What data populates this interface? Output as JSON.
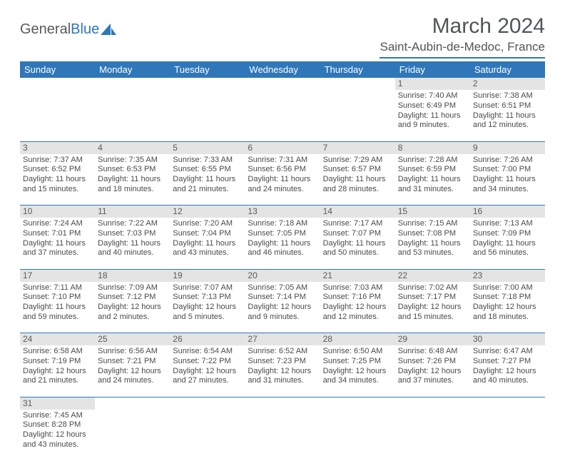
{
  "logo": {
    "text1": "General",
    "text2": "Blue"
  },
  "title": "March 2024",
  "location": "Saint-Aubin-de-Medoc, France",
  "headerColor": "#2f77b9",
  "dayHeaderBg": "#e4e4e4",
  "weekdays": [
    "Sunday",
    "Monday",
    "Tuesday",
    "Wednesday",
    "Thursday",
    "Friday",
    "Saturday"
  ],
  "weeks": [
    {
      "nums": [
        "",
        "",
        "",
        "",
        "",
        "1",
        "2"
      ],
      "cells": [
        null,
        null,
        null,
        null,
        null,
        {
          "sunrise": "Sunrise: 7:40 AM",
          "sunset": "Sunset: 6:49 PM",
          "day1": "Daylight: 11 hours",
          "day2": "and 9 minutes."
        },
        {
          "sunrise": "Sunrise: 7:38 AM",
          "sunset": "Sunset: 6:51 PM",
          "day1": "Daylight: 11 hours",
          "day2": "and 12 minutes."
        }
      ]
    },
    {
      "nums": [
        "3",
        "4",
        "5",
        "6",
        "7",
        "8",
        "9"
      ],
      "cells": [
        {
          "sunrise": "Sunrise: 7:37 AM",
          "sunset": "Sunset: 6:52 PM",
          "day1": "Daylight: 11 hours",
          "day2": "and 15 minutes."
        },
        {
          "sunrise": "Sunrise: 7:35 AM",
          "sunset": "Sunset: 6:53 PM",
          "day1": "Daylight: 11 hours",
          "day2": "and 18 minutes."
        },
        {
          "sunrise": "Sunrise: 7:33 AM",
          "sunset": "Sunset: 6:55 PM",
          "day1": "Daylight: 11 hours",
          "day2": "and 21 minutes."
        },
        {
          "sunrise": "Sunrise: 7:31 AM",
          "sunset": "Sunset: 6:56 PM",
          "day1": "Daylight: 11 hours",
          "day2": "and 24 minutes."
        },
        {
          "sunrise": "Sunrise: 7:29 AM",
          "sunset": "Sunset: 6:57 PM",
          "day1": "Daylight: 11 hours",
          "day2": "and 28 minutes."
        },
        {
          "sunrise": "Sunrise: 7:28 AM",
          "sunset": "Sunset: 6:59 PM",
          "day1": "Daylight: 11 hours",
          "day2": "and 31 minutes."
        },
        {
          "sunrise": "Sunrise: 7:26 AM",
          "sunset": "Sunset: 7:00 PM",
          "day1": "Daylight: 11 hours",
          "day2": "and 34 minutes."
        }
      ]
    },
    {
      "nums": [
        "10",
        "11",
        "12",
        "13",
        "14",
        "15",
        "16"
      ],
      "cells": [
        {
          "sunrise": "Sunrise: 7:24 AM",
          "sunset": "Sunset: 7:01 PM",
          "day1": "Daylight: 11 hours",
          "day2": "and 37 minutes."
        },
        {
          "sunrise": "Sunrise: 7:22 AM",
          "sunset": "Sunset: 7:03 PM",
          "day1": "Daylight: 11 hours",
          "day2": "and 40 minutes."
        },
        {
          "sunrise": "Sunrise: 7:20 AM",
          "sunset": "Sunset: 7:04 PM",
          "day1": "Daylight: 11 hours",
          "day2": "and 43 minutes."
        },
        {
          "sunrise": "Sunrise: 7:18 AM",
          "sunset": "Sunset: 7:05 PM",
          "day1": "Daylight: 11 hours",
          "day2": "and 46 minutes."
        },
        {
          "sunrise": "Sunrise: 7:17 AM",
          "sunset": "Sunset: 7:07 PM",
          "day1": "Daylight: 11 hours",
          "day2": "and 50 minutes."
        },
        {
          "sunrise": "Sunrise: 7:15 AM",
          "sunset": "Sunset: 7:08 PM",
          "day1": "Daylight: 11 hours",
          "day2": "and 53 minutes."
        },
        {
          "sunrise": "Sunrise: 7:13 AM",
          "sunset": "Sunset: 7:09 PM",
          "day1": "Daylight: 11 hours",
          "day2": "and 56 minutes."
        }
      ]
    },
    {
      "nums": [
        "17",
        "18",
        "19",
        "20",
        "21",
        "22",
        "23"
      ],
      "cells": [
        {
          "sunrise": "Sunrise: 7:11 AM",
          "sunset": "Sunset: 7:10 PM",
          "day1": "Daylight: 11 hours",
          "day2": "and 59 minutes."
        },
        {
          "sunrise": "Sunrise: 7:09 AM",
          "sunset": "Sunset: 7:12 PM",
          "day1": "Daylight: 12 hours",
          "day2": "and 2 minutes."
        },
        {
          "sunrise": "Sunrise: 7:07 AM",
          "sunset": "Sunset: 7:13 PM",
          "day1": "Daylight: 12 hours",
          "day2": "and 5 minutes."
        },
        {
          "sunrise": "Sunrise: 7:05 AM",
          "sunset": "Sunset: 7:14 PM",
          "day1": "Daylight: 12 hours",
          "day2": "and 9 minutes."
        },
        {
          "sunrise": "Sunrise: 7:03 AM",
          "sunset": "Sunset: 7:16 PM",
          "day1": "Daylight: 12 hours",
          "day2": "and 12 minutes."
        },
        {
          "sunrise": "Sunrise: 7:02 AM",
          "sunset": "Sunset: 7:17 PM",
          "day1": "Daylight: 12 hours",
          "day2": "and 15 minutes."
        },
        {
          "sunrise": "Sunrise: 7:00 AM",
          "sunset": "Sunset: 7:18 PM",
          "day1": "Daylight: 12 hours",
          "day2": "and 18 minutes."
        }
      ]
    },
    {
      "nums": [
        "24",
        "25",
        "26",
        "27",
        "28",
        "29",
        "30"
      ],
      "cells": [
        {
          "sunrise": "Sunrise: 6:58 AM",
          "sunset": "Sunset: 7:19 PM",
          "day1": "Daylight: 12 hours",
          "day2": "and 21 minutes."
        },
        {
          "sunrise": "Sunrise: 6:56 AM",
          "sunset": "Sunset: 7:21 PM",
          "day1": "Daylight: 12 hours",
          "day2": "and 24 minutes."
        },
        {
          "sunrise": "Sunrise: 6:54 AM",
          "sunset": "Sunset: 7:22 PM",
          "day1": "Daylight: 12 hours",
          "day2": "and 27 minutes."
        },
        {
          "sunrise": "Sunrise: 6:52 AM",
          "sunset": "Sunset: 7:23 PM",
          "day1": "Daylight: 12 hours",
          "day2": "and 31 minutes."
        },
        {
          "sunrise": "Sunrise: 6:50 AM",
          "sunset": "Sunset: 7:25 PM",
          "day1": "Daylight: 12 hours",
          "day2": "and 34 minutes."
        },
        {
          "sunrise": "Sunrise: 6:48 AM",
          "sunset": "Sunset: 7:26 PM",
          "day1": "Daylight: 12 hours",
          "day2": "and 37 minutes."
        },
        {
          "sunrise": "Sunrise: 6:47 AM",
          "sunset": "Sunset: 7:27 PM",
          "day1": "Daylight: 12 hours",
          "day2": "and 40 minutes."
        }
      ]
    },
    {
      "nums": [
        "31",
        "",
        "",
        "",
        "",
        "",
        ""
      ],
      "cells": [
        {
          "sunrise": "Sunrise: 7:45 AM",
          "sunset": "Sunset: 8:28 PM",
          "day1": "Daylight: 12 hours",
          "day2": "and 43 minutes."
        },
        null,
        null,
        null,
        null,
        null,
        null
      ]
    }
  ]
}
